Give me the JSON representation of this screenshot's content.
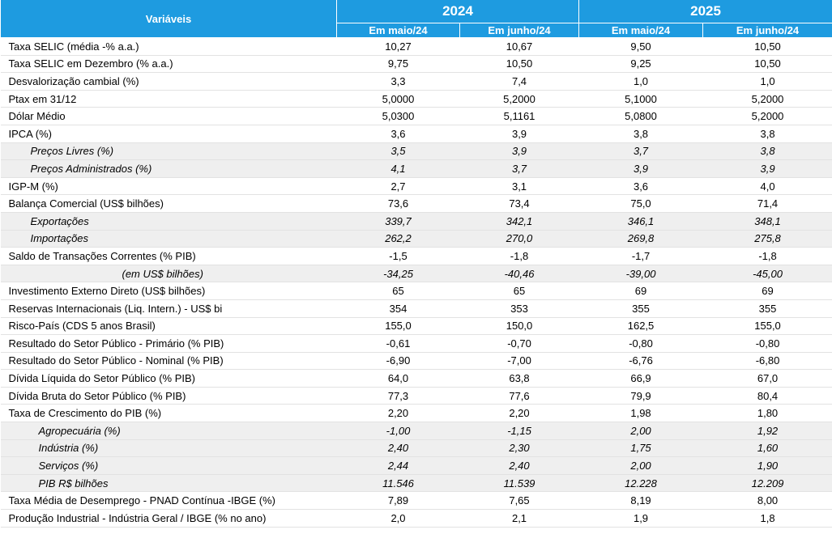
{
  "header": {
    "variables_label": "Variáveis",
    "years": [
      "2024",
      "2025"
    ],
    "subheaders": [
      "Em maio/24",
      "Em junho/24",
      "Em maio/24",
      "Em junho/24"
    ]
  },
  "rows": [
    {
      "label": "Taxa SELIC (média -% a.a.)",
      "values": [
        "10,27",
        "10,67",
        "9,50",
        "10,50"
      ],
      "style": ""
    },
    {
      "label": "Taxa SELIC em Dezembro (% a.a.)",
      "values": [
        "9,75",
        "10,50",
        "9,25",
        "10,50"
      ],
      "style": ""
    },
    {
      "label": "Desvalorização cambial (%)",
      "values": [
        "3,3",
        "7,4",
        "1,0",
        "1,0"
      ],
      "style": ""
    },
    {
      "label": "Ptax em 31/12",
      "values": [
        "5,0000",
        "5,2000",
        "5,1000",
        "5,2000"
      ],
      "style": ""
    },
    {
      "label": "Dólar Médio",
      "values": [
        "5,0300",
        "5,1161",
        "5,0800",
        "5,2000"
      ],
      "style": ""
    },
    {
      "label": "IPCA (%)",
      "values": [
        "3,6",
        "3,9",
        "3,8",
        "3,8"
      ],
      "style": ""
    },
    {
      "label": "Preços Livres (%)",
      "values": [
        "3,5",
        "3,9",
        "3,7",
        "3,8"
      ],
      "style": "sub1"
    },
    {
      "label": "Preços Administrados (%)",
      "values": [
        "4,1",
        "3,7",
        "3,9",
        "3,9"
      ],
      "style": "sub1"
    },
    {
      "label": "IGP-M (%)",
      "values": [
        "2,7",
        "3,1",
        "3,6",
        "4,0"
      ],
      "style": ""
    },
    {
      "label": "Balança Comercial (US$ bilhões)",
      "values": [
        "73,6",
        "73,4",
        "75,0",
        "71,4"
      ],
      "style": ""
    },
    {
      "label": "Exportações",
      "values": [
        "339,7",
        "342,1",
        "346,1",
        "348,1"
      ],
      "style": "sub1"
    },
    {
      "label": "Importações",
      "values": [
        "262,2",
        "270,0",
        "269,8",
        "275,8"
      ],
      "style": "sub1"
    },
    {
      "label": "Saldo de Transações Correntes (% PIB)",
      "values": [
        "-1,5",
        "-1,8",
        "-1,7",
        "-1,8"
      ],
      "style": ""
    },
    {
      "label": "(em US$ bilhões)",
      "values": [
        "-34,25",
        "-40,46",
        "-39,00",
        "-45,00"
      ],
      "style": "sub3"
    },
    {
      "label": "Investimento Externo Direto (US$ bilhões)",
      "values": [
        "65",
        "65",
        "69",
        "69"
      ],
      "style": ""
    },
    {
      "label": "Reservas Internacionais (Liq. Intern.) - US$ bi",
      "values": [
        "354",
        "353",
        "355",
        "355"
      ],
      "style": ""
    },
    {
      "label": "Risco-País (CDS 5 anos Brasil)",
      "values": [
        "155,0",
        "150,0",
        "162,5",
        "155,0"
      ],
      "style": ""
    },
    {
      "label": "Resultado do Setor Público - Primário  (% PIB)",
      "values": [
        "-0,61",
        "-0,70",
        "-0,80",
        "-0,80"
      ],
      "style": ""
    },
    {
      "label": "Resultado do Setor Público - Nominal  (% PIB)",
      "values": [
        "-6,90",
        "-7,00",
        "-6,76",
        "-6,80"
      ],
      "style": ""
    },
    {
      "label": "Dívida Líquida do Setor Público (% PIB)",
      "values": [
        "64,0",
        "63,8",
        "66,9",
        "67,0"
      ],
      "style": ""
    },
    {
      "label": "Dívida Bruta do Setor Público (% PIB)",
      "values": [
        "77,3",
        "77,6",
        "79,9",
        "80,4"
      ],
      "style": ""
    },
    {
      "label": "Taxa de Crescimento do PIB (%)",
      "values": [
        "2,20",
        "2,20",
        "1,98",
        "1,80"
      ],
      "style": ""
    },
    {
      "label": "Agropecuária (%)",
      "values": [
        "-1,00",
        "-1,15",
        "2,00",
        "1,92"
      ],
      "style": "sub2"
    },
    {
      "label": "Indústria (%)",
      "values": [
        "2,40",
        "2,30",
        "1,75",
        "1,60"
      ],
      "style": "sub2"
    },
    {
      "label": "Serviços (%)",
      "values": [
        "2,44",
        "2,40",
        "2,00",
        "1,90"
      ],
      "style": "sub2"
    },
    {
      "label": "PIB R$ bilhões",
      "values": [
        "11.546",
        "11.539",
        "12.228",
        "12.209"
      ],
      "style": "sub2"
    },
    {
      "label": "Taxa Média de Desemprego  - PNAD Contínua -IBGE (%)",
      "values": [
        "7,89",
        "7,65",
        "8,19",
        "8,00"
      ],
      "style": ""
    },
    {
      "label": "Produção Industrial - Indústria Geral / IBGE (% no ano)",
      "values": [
        "2,0",
        "2,1",
        "1,9",
        "1,8"
      ],
      "style": ""
    }
  ]
}
